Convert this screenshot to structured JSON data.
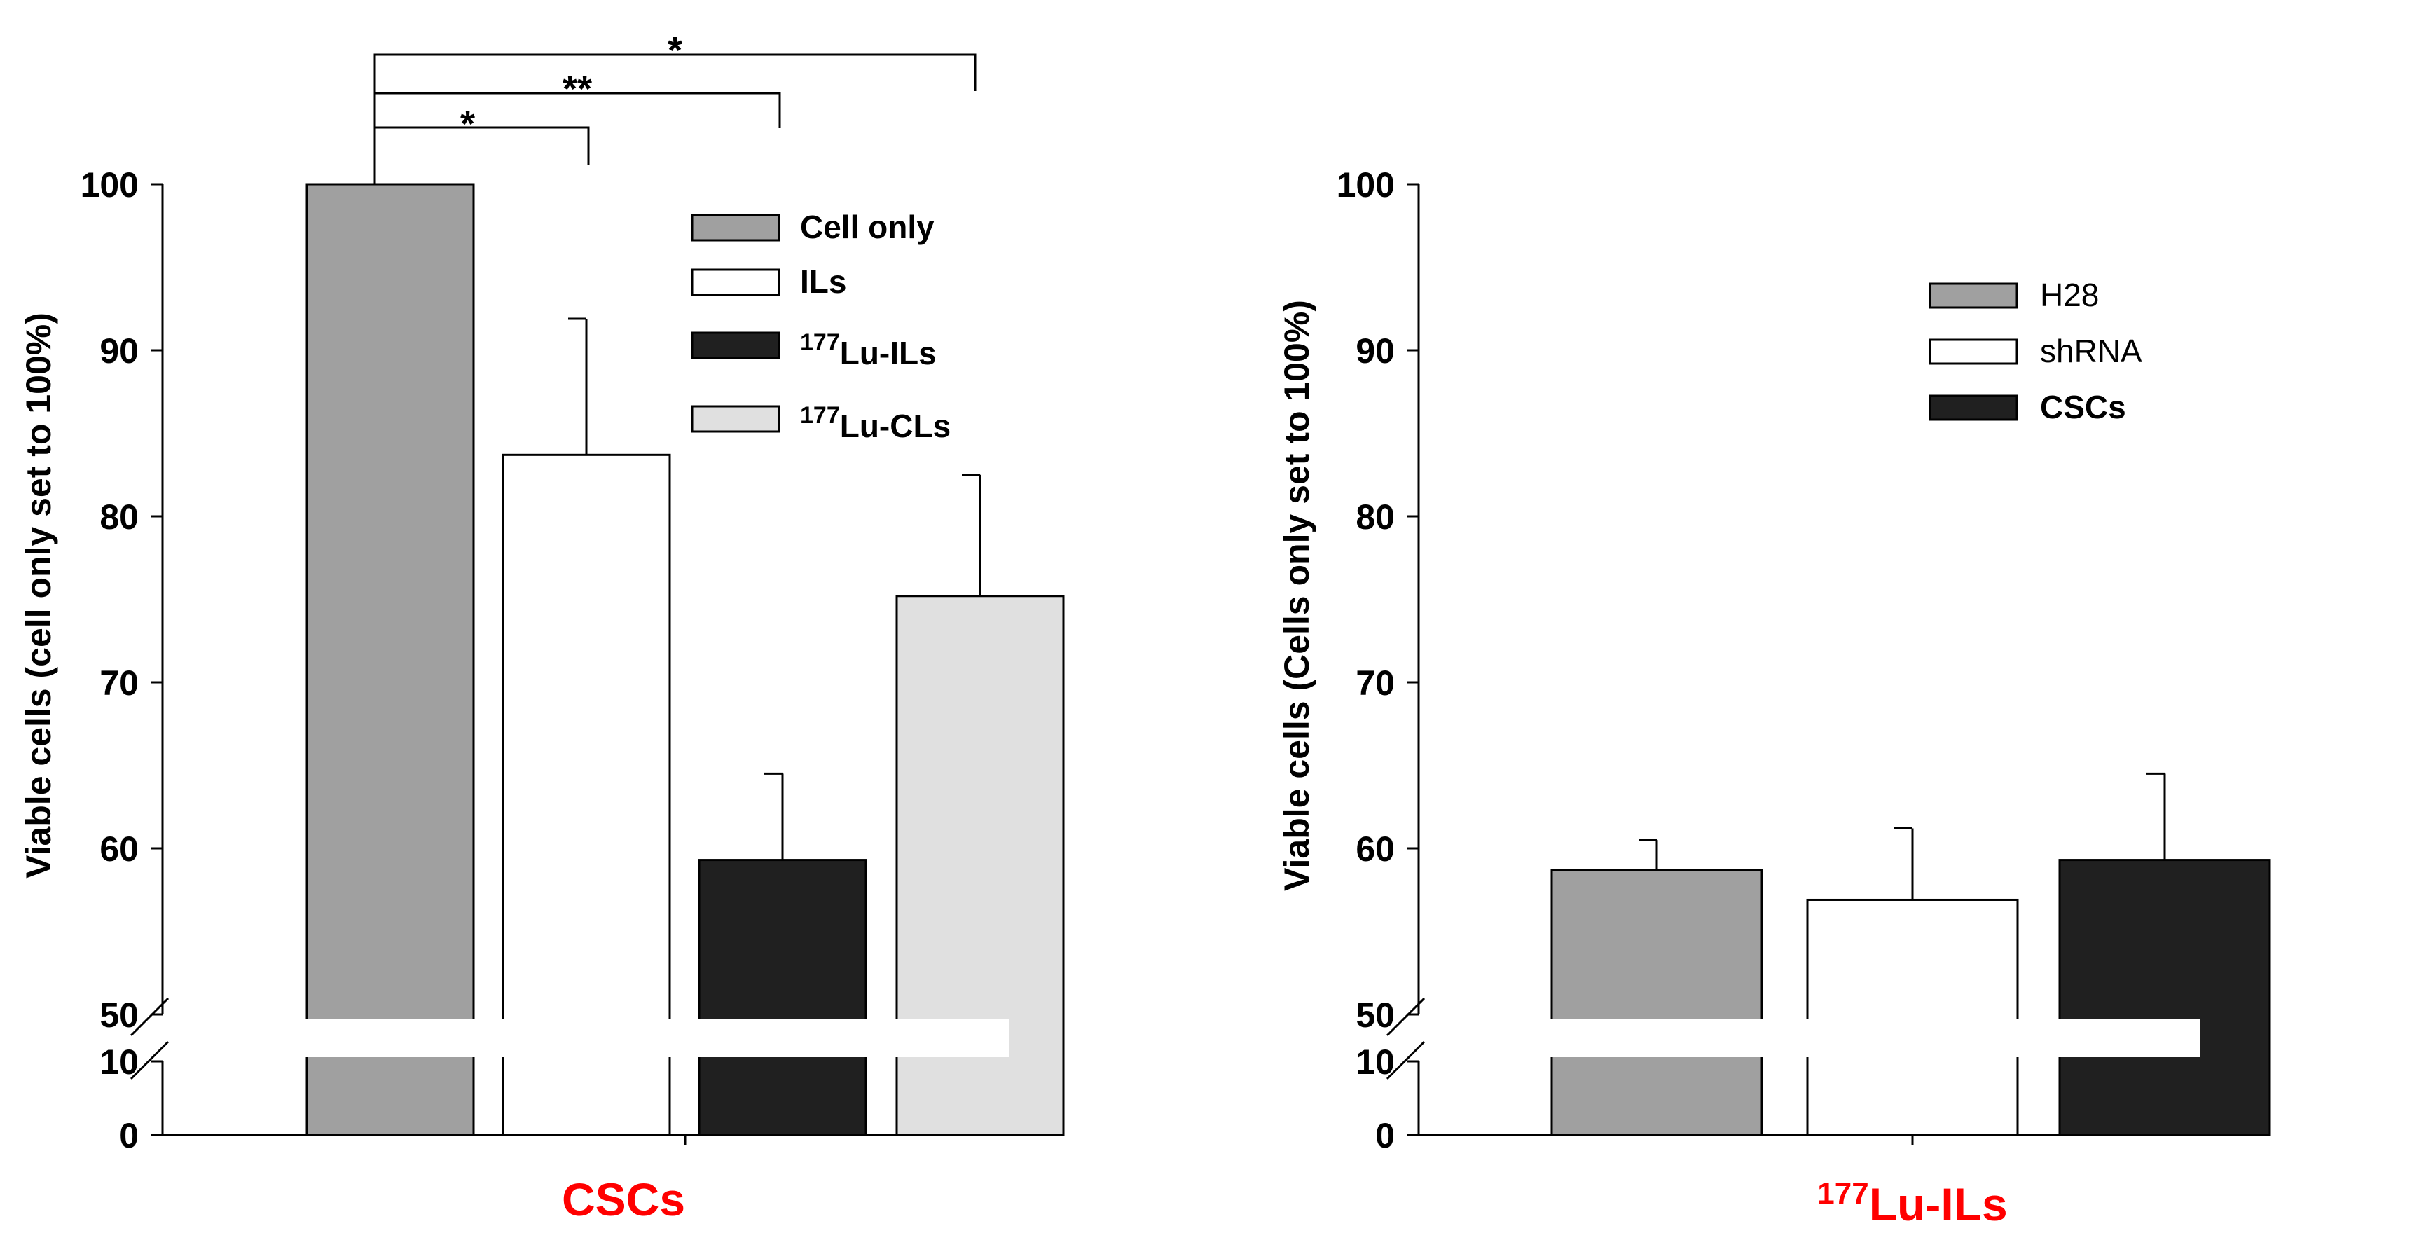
{
  "colors": {
    "gray": "#a0a0a0",
    "white": "#ffffff",
    "black": "#202020",
    "light_gray": "#e0e0e0",
    "xlabel_red": "#ff0000",
    "axis": "#000000"
  },
  "chart_data": [
    {
      "type": "bar",
      "title": "",
      "xlabel": "CSCs",
      "ylabel": "Viable cells (cell only set to 100%)",
      "yticks": [
        "0",
        "10",
        "50",
        "60",
        "70",
        "80",
        "90",
        "100"
      ],
      "ylim": [
        0,
        100
      ],
      "axis_break": "10-50",
      "legend_position": "top-right",
      "series": [
        {
          "name": "Cell only",
          "value": 100,
          "error": 0,
          "color": "#a0a0a0"
        },
        {
          "name": "ILs",
          "value": 83.7,
          "error": 8.2,
          "color": "#ffffff"
        },
        {
          "name_sup": "177",
          "name_main": "Lu-ILs",
          "value": 59.3,
          "error": 5.2,
          "color": "#202020"
        },
        {
          "name_sup": "177",
          "name_main": "Lu-CLs",
          "value": 75.2,
          "error": 7.3,
          "color": "#e0e0e0"
        }
      ],
      "significance": [
        {
          "label": "*",
          "from": 0,
          "to": 1
        },
        {
          "label": "**",
          "from": 0,
          "to": 2
        },
        {
          "label": "*",
          "from": 0,
          "to": 3
        }
      ]
    },
    {
      "type": "bar",
      "title": "",
      "xlabel_sup": "177",
      "xlabel_main": "Lu-ILs",
      "ylabel": "Viable cells (Cells only set to 100%)",
      "yticks": [
        "0",
        "10",
        "50",
        "60",
        "70",
        "80",
        "90",
        "100"
      ],
      "ylim": [
        0,
        100
      ],
      "axis_break": "10-50",
      "legend_position": "top-right",
      "series": [
        {
          "name": "H28",
          "value": 58.7,
          "error": 1.8,
          "color": "#a0a0a0"
        },
        {
          "name": "shRNA",
          "value": 56.9,
          "error": 4.3,
          "color": "#ffffff"
        },
        {
          "name": "CSCs",
          "value": 59.3,
          "error": 5.2,
          "color": "#202020"
        }
      ]
    }
  ]
}
